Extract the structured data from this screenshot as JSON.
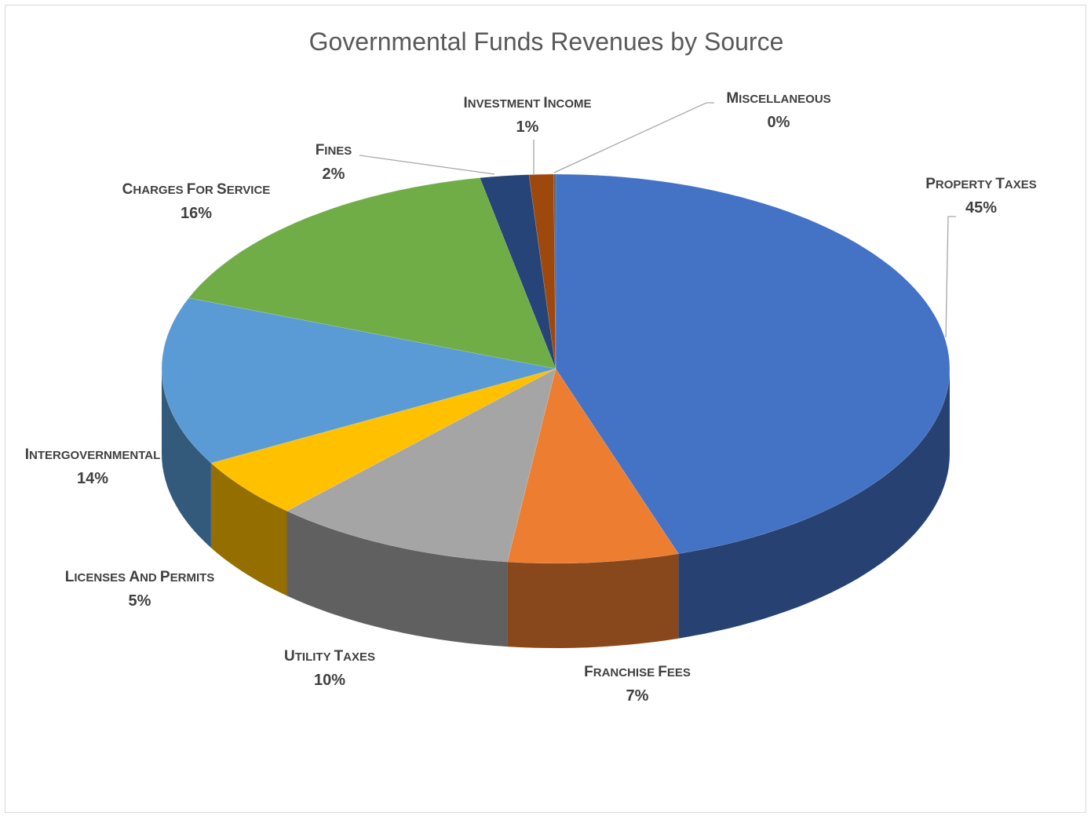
{
  "chart_data": {
    "type": "pie",
    "style": "3d",
    "title": "Governmental Funds Revenues by Source",
    "categories": [
      "Property Taxes",
      "Franchise Fees",
      "Utility Taxes",
      "Licenses and Permits",
      "Intergovernmental",
      "Charges for Service",
      "Fines",
      "Investment Income",
      "Miscellaneous"
    ],
    "values": [
      45,
      7,
      10,
      5,
      14,
      16,
      2,
      1,
      0
    ],
    "data_labels": [
      "45%",
      "7%",
      "10%",
      "5%",
      "14%",
      "16%",
      "2%",
      "1%",
      "0%"
    ],
    "colors": [
      "#4472c4",
      "#ed7d31",
      "#a5a5a5",
      "#ffc000",
      "#5b9bd5",
      "#70ad47",
      "#264478",
      "#9e480e",
      "#636363"
    ],
    "legend": "none",
    "label_style": "small caps, category name above percentage"
  }
}
